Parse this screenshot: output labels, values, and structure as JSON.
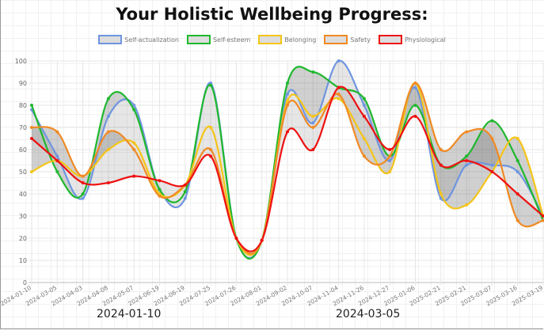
{
  "chart_data": {
    "type": "line",
    "title": "Your Holistic Wellbeing Progress:",
    "ylim": [
      0,
      100
    ],
    "yticks": [
      0,
      10,
      20,
      30,
      40,
      50,
      60,
      70,
      80,
      90,
      100
    ],
    "legend_position": "top",
    "categories": [
      "2024-01-10",
      "2024-03-05",
      "2024-04-03",
      "2024-04-08",
      "2024-05-07",
      "2024-06-19",
      "2024-06-19",
      "2024-07-25",
      "2024-07-26",
      "2024-08-01",
      "2024-09-02",
      "2024-10-07",
      "2024-11-04",
      "2024-11-26",
      "2024-12-27",
      "2025-01-06",
      "2025-02-21",
      "2025-02-21",
      "2025-03-07",
      "2025-03-16",
      "2025-03-19"
    ],
    "series": [
      {
        "name": "Self-actualization",
        "color": "#6f95e0",
        "values": [
          78,
          57,
          38,
          75,
          80,
          42,
          38,
          90,
          20,
          19,
          85,
          72,
          100,
          80,
          55,
          88,
          38,
          53,
          53,
          50,
          30
        ]
      },
      {
        "name": "Self-esteem",
        "color": "#1fb82f",
        "values": [
          80,
          50,
          40,
          83,
          78,
          42,
          41,
          89,
          20,
          19,
          90,
          95,
          88,
          83,
          57,
          80,
          53,
          57,
          73,
          55,
          28
        ]
      },
      {
        "name": "Belonging",
        "color": "#f5c518",
        "values": [
          50,
          55,
          48,
          60,
          63,
          40,
          44,
          70,
          20,
          19,
          82,
          75,
          83,
          65,
          50,
          90,
          40,
          35,
          50,
          65,
          30
        ]
      },
      {
        "name": "Safety",
        "color": "#f08a24",
        "values": [
          70,
          68,
          48,
          68,
          60,
          39,
          44,
          60,
          20,
          19,
          80,
          70,
          85,
          57,
          57,
          90,
          60,
          68,
          65,
          28,
          28
        ]
      },
      {
        "name": "Physiological",
        "color": "#ee1111",
        "values": [
          65,
          55,
          45,
          45,
          48,
          46,
          44,
          57,
          20,
          19,
          68,
          60,
          88,
          75,
          60,
          75,
          53,
          55,
          50,
          40,
          30
        ]
      }
    ]
  },
  "footer_dates": [
    "2024-01-10",
    "2024-03-05"
  ]
}
